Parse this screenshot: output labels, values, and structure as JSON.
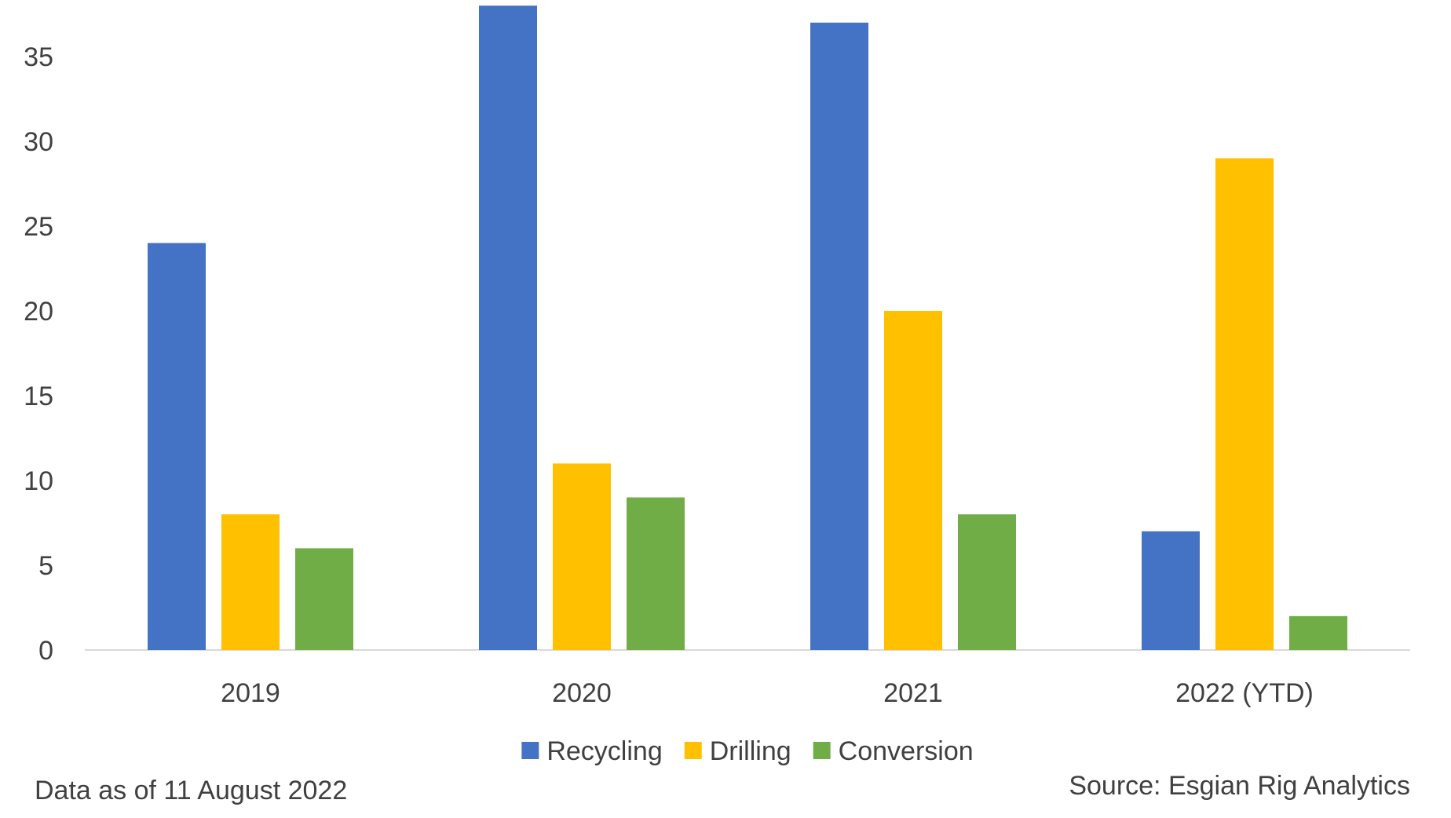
{
  "chart_data": {
    "type": "bar",
    "title": "",
    "xlabel": "",
    "ylabel": "",
    "categories": [
      "2019",
      "2020",
      "2021",
      "2022 (YTD)"
    ],
    "series": [
      {
        "name": "Recycling",
        "color": "#4472C4",
        "values": [
          24,
          38,
          37,
          7
        ]
      },
      {
        "name": "Drilling",
        "color": "#FFC000",
        "values": [
          8,
          11,
          20,
          29
        ]
      },
      {
        "name": "Conversion",
        "color": "#70AD47",
        "values": [
          6,
          9,
          8,
          2
        ]
      }
    ],
    "ylim": [
      0,
      38
    ],
    "yticks": [
      0,
      5,
      10,
      15,
      20,
      25,
      30,
      35
    ],
    "grid": false,
    "legend_position": "bottom"
  },
  "footnotes": {
    "left": "Data as of 11 August 2022",
    "right": "Source: Esgian Rig Analytics"
  }
}
